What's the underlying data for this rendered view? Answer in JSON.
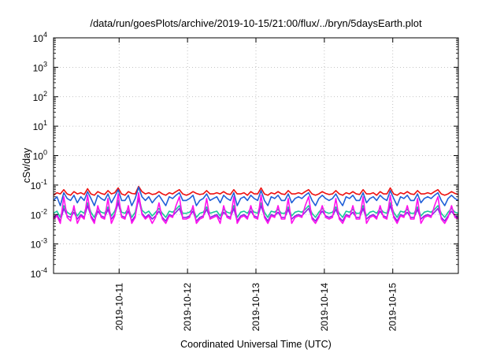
{
  "chart_data": {
    "type": "line",
    "title": "/data/run/goesPlots/archive/2019-10-15/21:00/flux/../bryn/5daysEarth.plot",
    "xlabel": "Coordinated Universal Time (UTC)",
    "ylabel": "cSv/day",
    "y_scale": "log",
    "ylim": [
      0.0001,
      10000
    ],
    "y_ticks": [
      {
        "base": "10",
        "exp": "-4",
        "value": 0.0001
      },
      {
        "base": "10",
        "exp": "-3",
        "value": 0.001
      },
      {
        "base": "10",
        "exp": "-2",
        "value": 0.01
      },
      {
        "base": "10",
        "exp": "-1",
        "value": 0.1
      },
      {
        "base": "10",
        "exp": "0",
        "value": 1
      },
      {
        "base": "10",
        "exp": "1",
        "value": 10
      },
      {
        "base": "10",
        "exp": "2",
        "value": 100
      },
      {
        "base": "10",
        "exp": "3",
        "value": 1000
      },
      {
        "base": "10",
        "exp": "4",
        "value": 10000
      }
    ],
    "xlim": [
      "2019-10-10T01:00",
      "2019-10-15T23:00"
    ],
    "x_ticks": [
      "2019-10-11",
      "2019-10-12",
      "2019-10-13",
      "2019-10-14",
      "2019-10-15"
    ],
    "grid": true,
    "series": [
      {
        "color": "#ee1111",
        "baseline": 0.052,
        "values": [
          0.045,
          0.055,
          0.05,
          0.07,
          0.05,
          0.045,
          0.06,
          0.05,
          0.055,
          0.048,
          0.075,
          0.05,
          0.045,
          0.06,
          0.052,
          0.048,
          0.065,
          0.05,
          0.055,
          0.08,
          0.05,
          0.045,
          0.06,
          0.052,
          0.05,
          0.09,
          0.06,
          0.05,
          0.055,
          0.048,
          0.05,
          0.06,
          0.05,
          0.045,
          0.055,
          0.05,
          0.06,
          0.07,
          0.05,
          0.045,
          0.05,
          0.06,
          0.052,
          0.048,
          0.05,
          0.065,
          0.05,
          0.05,
          0.055,
          0.05,
          0.06,
          0.05,
          0.048,
          0.07,
          0.05,
          0.05,
          0.055,
          0.045,
          0.06,
          0.05,
          0.05,
          0.08,
          0.05,
          0.045,
          0.055,
          0.05,
          0.06,
          0.05,
          0.048,
          0.065,
          0.05,
          0.05,
          0.055,
          0.05,
          0.06,
          0.07,
          0.05,
          0.045,
          0.05,
          0.06,
          0.052,
          0.048,
          0.05,
          0.065,
          0.05,
          0.045,
          0.055,
          0.05,
          0.06,
          0.05,
          0.048,
          0.07,
          0.05,
          0.05,
          0.055,
          0.045,
          0.06,
          0.05,
          0.05,
          0.08,
          0.05,
          0.045,
          0.055,
          0.05,
          0.06,
          0.05,
          0.048,
          0.065,
          0.05,
          0.05,
          0.055,
          0.05,
          0.06,
          0.07,
          0.05,
          0.045,
          0.05,
          0.06,
          0.052,
          0.048
        ]
      },
      {
        "color": "#1f5fd8",
        "baseline": 0.035,
        "values": [
          0.03,
          0.04,
          0.02,
          0.055,
          0.035,
          0.03,
          0.045,
          0.025,
          0.04,
          0.03,
          0.06,
          0.035,
          0.02,
          0.045,
          0.035,
          0.03,
          0.05,
          0.025,
          0.04,
          0.07,
          0.03,
          0.03,
          0.045,
          0.02,
          0.035,
          0.085,
          0.04,
          0.03,
          0.04,
          0.025,
          0.035,
          0.045,
          0.03,
          0.02,
          0.04,
          0.035,
          0.045,
          0.055,
          0.03,
          0.03,
          0.035,
          0.045,
          0.02,
          0.03,
          0.035,
          0.05,
          0.03,
          0.035,
          0.04,
          0.025,
          0.045,
          0.035,
          0.03,
          0.055,
          0.02,
          0.035,
          0.04,
          0.03,
          0.045,
          0.035,
          0.03,
          0.065,
          0.03,
          0.02,
          0.04,
          0.035,
          0.045,
          0.03,
          0.03,
          0.05,
          0.025,
          0.035,
          0.04,
          0.035,
          0.045,
          0.055,
          0.03,
          0.02,
          0.035,
          0.045,
          0.035,
          0.03,
          0.035,
          0.05,
          0.03,
          0.02,
          0.04,
          0.035,
          0.045,
          0.03,
          0.03,
          0.055,
          0.025,
          0.035,
          0.04,
          0.03,
          0.045,
          0.035,
          0.03,
          0.065,
          0.035,
          0.02,
          0.04,
          0.035,
          0.045,
          0.03,
          0.03,
          0.05,
          0.025,
          0.035,
          0.04,
          0.035,
          0.045,
          0.055,
          0.03,
          0.02,
          0.035,
          0.045,
          0.035,
          0.03
        ]
      },
      {
        "color": "#19c79a",
        "baseline": 0.012,
        "values": [
          0.011,
          0.013,
          0.008,
          0.02,
          0.012,
          0.01,
          0.015,
          0.009,
          0.013,
          0.011,
          0.025,
          0.012,
          0.008,
          0.016,
          0.012,
          0.011,
          0.018,
          0.009,
          0.013,
          0.03,
          0.012,
          0.011,
          0.016,
          0.008,
          0.012,
          0.04,
          0.014,
          0.011,
          0.013,
          0.009,
          0.012,
          0.016,
          0.011,
          0.008,
          0.013,
          0.012,
          0.015,
          0.02,
          0.011,
          0.011,
          0.012,
          0.016,
          0.008,
          0.011,
          0.012,
          0.018,
          0.011,
          0.012,
          0.013,
          0.009,
          0.015,
          0.012,
          0.011,
          0.02,
          0.008,
          0.012,
          0.013,
          0.011,
          0.016,
          0.012,
          0.011,
          0.025,
          0.012,
          0.008,
          0.013,
          0.012,
          0.015,
          0.011,
          0.011,
          0.018,
          0.009,
          0.012,
          0.013,
          0.012,
          0.015,
          0.02,
          0.011,
          0.008,
          0.012,
          0.016,
          0.012,
          0.011,
          0.012,
          0.018,
          0.011,
          0.008,
          0.013,
          0.012,
          0.015,
          0.011,
          0.011,
          0.02,
          0.009,
          0.012,
          0.013,
          0.011,
          0.016,
          0.012,
          0.011,
          0.025,
          0.012,
          0.008,
          0.013,
          0.012,
          0.015,
          0.011,
          0.011,
          0.018,
          0.009,
          0.012,
          0.013,
          0.012,
          0.015,
          0.02,
          0.011,
          0.008,
          0.012,
          0.016,
          0.012,
          0.011
        ]
      },
      {
        "color": "#8a2be2",
        "baseline": 0.009,
        "values": [
          0.008,
          0.01,
          0.006,
          0.016,
          0.009,
          0.008,
          0.012,
          0.007,
          0.01,
          0.008,
          0.02,
          0.009,
          0.006,
          0.013,
          0.009,
          0.008,
          0.015,
          0.007,
          0.01,
          0.025,
          0.009,
          0.008,
          0.013,
          0.006,
          0.009,
          0.035,
          0.011,
          0.008,
          0.01,
          0.007,
          0.009,
          0.013,
          0.008,
          0.006,
          0.01,
          0.009,
          0.012,
          0.016,
          0.008,
          0.008,
          0.009,
          0.013,
          0.006,
          0.008,
          0.009,
          0.015,
          0.008,
          0.009,
          0.01,
          0.007,
          0.012,
          0.009,
          0.008,
          0.016,
          0.006,
          0.009,
          0.01,
          0.008,
          0.013,
          0.009,
          0.008,
          0.02,
          0.009,
          0.006,
          0.01,
          0.009,
          0.012,
          0.008,
          0.008,
          0.015,
          0.007,
          0.009,
          0.01,
          0.009,
          0.012,
          0.016,
          0.008,
          0.006,
          0.009,
          0.013,
          0.009,
          0.008,
          0.009,
          0.015,
          0.008,
          0.006,
          0.01,
          0.009,
          0.012,
          0.008,
          0.008,
          0.016,
          0.007,
          0.009,
          0.01,
          0.008,
          0.013,
          0.009,
          0.008,
          0.02,
          0.009,
          0.006,
          0.01,
          0.009,
          0.012,
          0.008,
          0.008,
          0.015,
          0.007,
          0.009,
          0.01,
          0.009,
          0.012,
          0.016,
          0.008,
          0.006,
          0.009,
          0.013,
          0.009,
          0.008
        ]
      },
      {
        "color": "#ff11ee",
        "baseline": 0.008,
        "values": [
          0.007,
          0.009,
          0.005,
          0.04,
          0.008,
          0.006,
          0.02,
          0.005,
          0.009,
          0.007,
          0.045,
          0.008,
          0.005,
          0.02,
          0.008,
          0.007,
          0.035,
          0.005,
          0.009,
          0.05,
          0.008,
          0.007,
          0.02,
          0.005,
          0.008,
          0.055,
          0.01,
          0.007,
          0.009,
          0.005,
          0.008,
          0.025,
          0.007,
          0.005,
          0.009,
          0.008,
          0.02,
          0.04,
          0.007,
          0.007,
          0.008,
          0.02,
          0.005,
          0.007,
          0.008,
          0.035,
          0.007,
          0.008,
          0.009,
          0.005,
          0.02,
          0.008,
          0.007,
          0.04,
          0.005,
          0.008,
          0.009,
          0.007,
          0.02,
          0.008,
          0.007,
          0.045,
          0.008,
          0.005,
          0.009,
          0.008,
          0.02,
          0.007,
          0.007,
          0.035,
          0.005,
          0.008,
          0.009,
          0.008,
          0.02,
          0.04,
          0.007,
          0.005,
          0.008,
          0.02,
          0.008,
          0.007,
          0.008,
          0.035,
          0.007,
          0.005,
          0.009,
          0.008,
          0.02,
          0.007,
          0.007,
          0.04,
          0.005,
          0.008,
          0.009,
          0.007,
          0.02,
          0.008,
          0.007,
          0.045,
          0.008,
          0.005,
          0.009,
          0.008,
          0.02,
          0.007,
          0.007,
          0.035,
          0.005,
          0.008,
          0.009,
          0.008,
          0.02,
          0.04,
          0.007,
          0.005,
          0.008,
          0.02,
          0.008,
          0.007
        ]
      }
    ]
  }
}
